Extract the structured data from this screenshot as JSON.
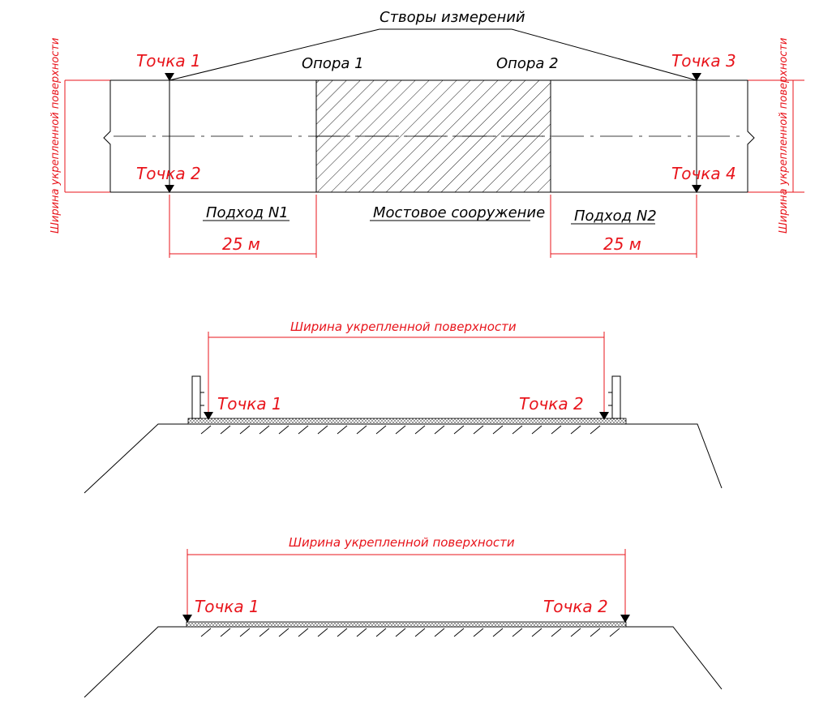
{
  "plan": {
    "stvory_label": "Створы измерений",
    "opora1": "Опора 1",
    "opora2": "Опора 2",
    "tochka1": "Точка 1",
    "tochka2": "Точка 2",
    "tochka3": "Точка 3",
    "tochka4": "Точка 4",
    "podhod1": "Подход N1",
    "podhod2": "Подход N2",
    "bridge": "Мостовое сооружение",
    "dim1": "25 м",
    "dim2": "25 м",
    "width_left": "Ширина укрепленной поверхности",
    "width_right": "Ширина укрепленной поверхности"
  },
  "section1": {
    "width": "Ширина укрепленной поверхности",
    "tochka1": "Точка 1",
    "tochka2": "Точка 2"
  },
  "section2": {
    "width": "Ширина укрепленной поверхности",
    "tochka1": "Точка 1",
    "tochka2": "Точка 2"
  },
  "colors": {
    "lines": "#000000",
    "annotations": "#e8141b",
    "background": "#ffffff"
  }
}
